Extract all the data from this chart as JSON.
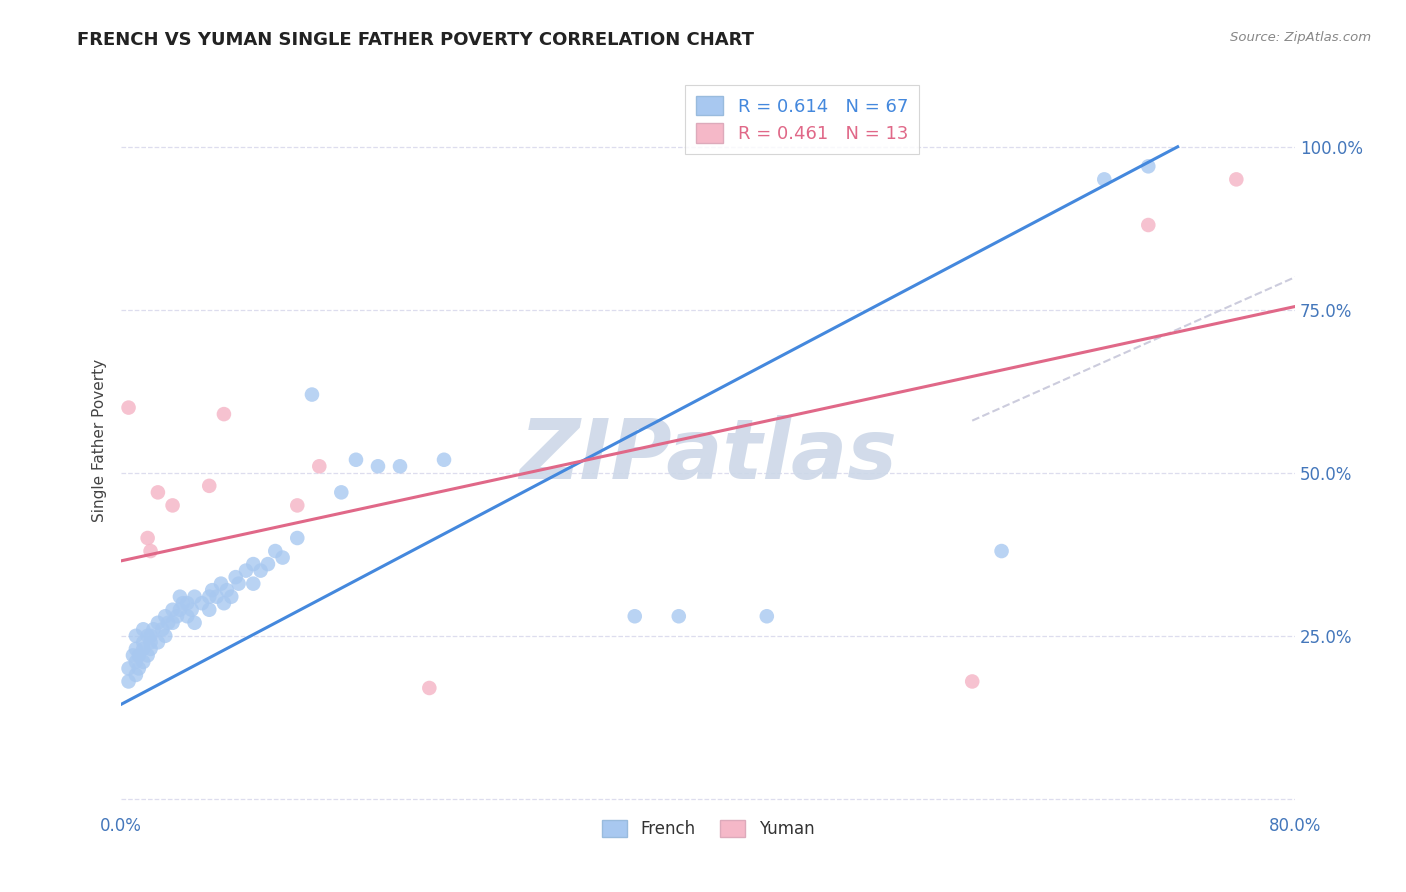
{
  "title": "FRENCH VS YUMAN SINGLE FATHER POVERTY CORRELATION CHART",
  "source": "Source: ZipAtlas.com",
  "ylabel": "Single Father Poverty",
  "xlim": [
    0.0,
    0.8
  ],
  "ylim": [
    -0.02,
    1.12
  ],
  "xticks": [
    0.0,
    0.2,
    0.4,
    0.6,
    0.8
  ],
  "xticklabels": [
    "0.0%",
    "",
    "",
    "",
    "80.0%"
  ],
  "ytick_positions": [
    0.0,
    0.25,
    0.5,
    0.75,
    1.0
  ],
  "yticklabels": [
    "",
    "25.0%",
    "50.0%",
    "75.0%",
    "100.0%"
  ],
  "french_R": 0.614,
  "french_N": 67,
  "yuman_R": 0.461,
  "yuman_N": 13,
  "french_color": "#a8c8f0",
  "yuman_color": "#f5b8c8",
  "trendline_french_color": "#4488dd",
  "trendline_yuman_color": "#e06888",
  "diag_color": "#ccccdd",
  "watermark_color": "#cdd8e8",
  "french_points": [
    [
      0.005,
      0.18
    ],
    [
      0.005,
      0.2
    ],
    [
      0.008,
      0.22
    ],
    [
      0.01,
      0.19
    ],
    [
      0.01,
      0.21
    ],
    [
      0.01,
      0.23
    ],
    [
      0.01,
      0.25
    ],
    [
      0.012,
      0.2
    ],
    [
      0.012,
      0.22
    ],
    [
      0.015,
      0.21
    ],
    [
      0.015,
      0.23
    ],
    [
      0.015,
      0.24
    ],
    [
      0.015,
      0.26
    ],
    [
      0.018,
      0.22
    ],
    [
      0.018,
      0.25
    ],
    [
      0.02,
      0.23
    ],
    [
      0.02,
      0.25
    ],
    [
      0.02,
      0.24
    ],
    [
      0.022,
      0.26
    ],
    [
      0.025,
      0.24
    ],
    [
      0.025,
      0.27
    ],
    [
      0.028,
      0.26
    ],
    [
      0.03,
      0.25
    ],
    [
      0.03,
      0.28
    ],
    [
      0.032,
      0.27
    ],
    [
      0.035,
      0.27
    ],
    [
      0.035,
      0.29
    ],
    [
      0.038,
      0.28
    ],
    [
      0.04,
      0.29
    ],
    [
      0.04,
      0.31
    ],
    [
      0.042,
      0.3
    ],
    [
      0.045,
      0.28
    ],
    [
      0.045,
      0.3
    ],
    [
      0.048,
      0.29
    ],
    [
      0.05,
      0.31
    ],
    [
      0.05,
      0.27
    ],
    [
      0.055,
      0.3
    ],
    [
      0.06,
      0.29
    ],
    [
      0.06,
      0.31
    ],
    [
      0.062,
      0.32
    ],
    [
      0.065,
      0.31
    ],
    [
      0.068,
      0.33
    ],
    [
      0.07,
      0.3
    ],
    [
      0.072,
      0.32
    ],
    [
      0.075,
      0.31
    ],
    [
      0.078,
      0.34
    ],
    [
      0.08,
      0.33
    ],
    [
      0.085,
      0.35
    ],
    [
      0.09,
      0.33
    ],
    [
      0.09,
      0.36
    ],
    [
      0.095,
      0.35
    ],
    [
      0.1,
      0.36
    ],
    [
      0.105,
      0.38
    ],
    [
      0.11,
      0.37
    ],
    [
      0.12,
      0.4
    ],
    [
      0.13,
      0.62
    ],
    [
      0.15,
      0.47
    ],
    [
      0.16,
      0.52
    ],
    [
      0.175,
      0.51
    ],
    [
      0.19,
      0.51
    ],
    [
      0.22,
      0.52
    ],
    [
      0.35,
      0.28
    ],
    [
      0.38,
      0.28
    ],
    [
      0.44,
      0.28
    ],
    [
      0.6,
      0.38
    ],
    [
      0.67,
      0.95
    ],
    [
      0.7,
      0.97
    ]
  ],
  "yuman_points": [
    [
      0.005,
      0.6
    ],
    [
      0.018,
      0.4
    ],
    [
      0.02,
      0.38
    ],
    [
      0.025,
      0.47
    ],
    [
      0.035,
      0.45
    ],
    [
      0.06,
      0.48
    ],
    [
      0.07,
      0.59
    ],
    [
      0.12,
      0.45
    ],
    [
      0.135,
      0.51
    ],
    [
      0.21,
      0.17
    ],
    [
      0.58,
      0.18
    ],
    [
      0.7,
      0.88
    ],
    [
      0.76,
      0.95
    ]
  ],
  "french_trendline": [
    [
      0.0,
      0.145
    ],
    [
      0.72,
      1.0
    ]
  ],
  "yuman_trendline": [
    [
      0.0,
      0.365
    ],
    [
      0.8,
      0.755
    ]
  ],
  "diag_line": [
    [
      0.58,
      0.58
    ],
    [
      0.94,
      0.94
    ]
  ]
}
